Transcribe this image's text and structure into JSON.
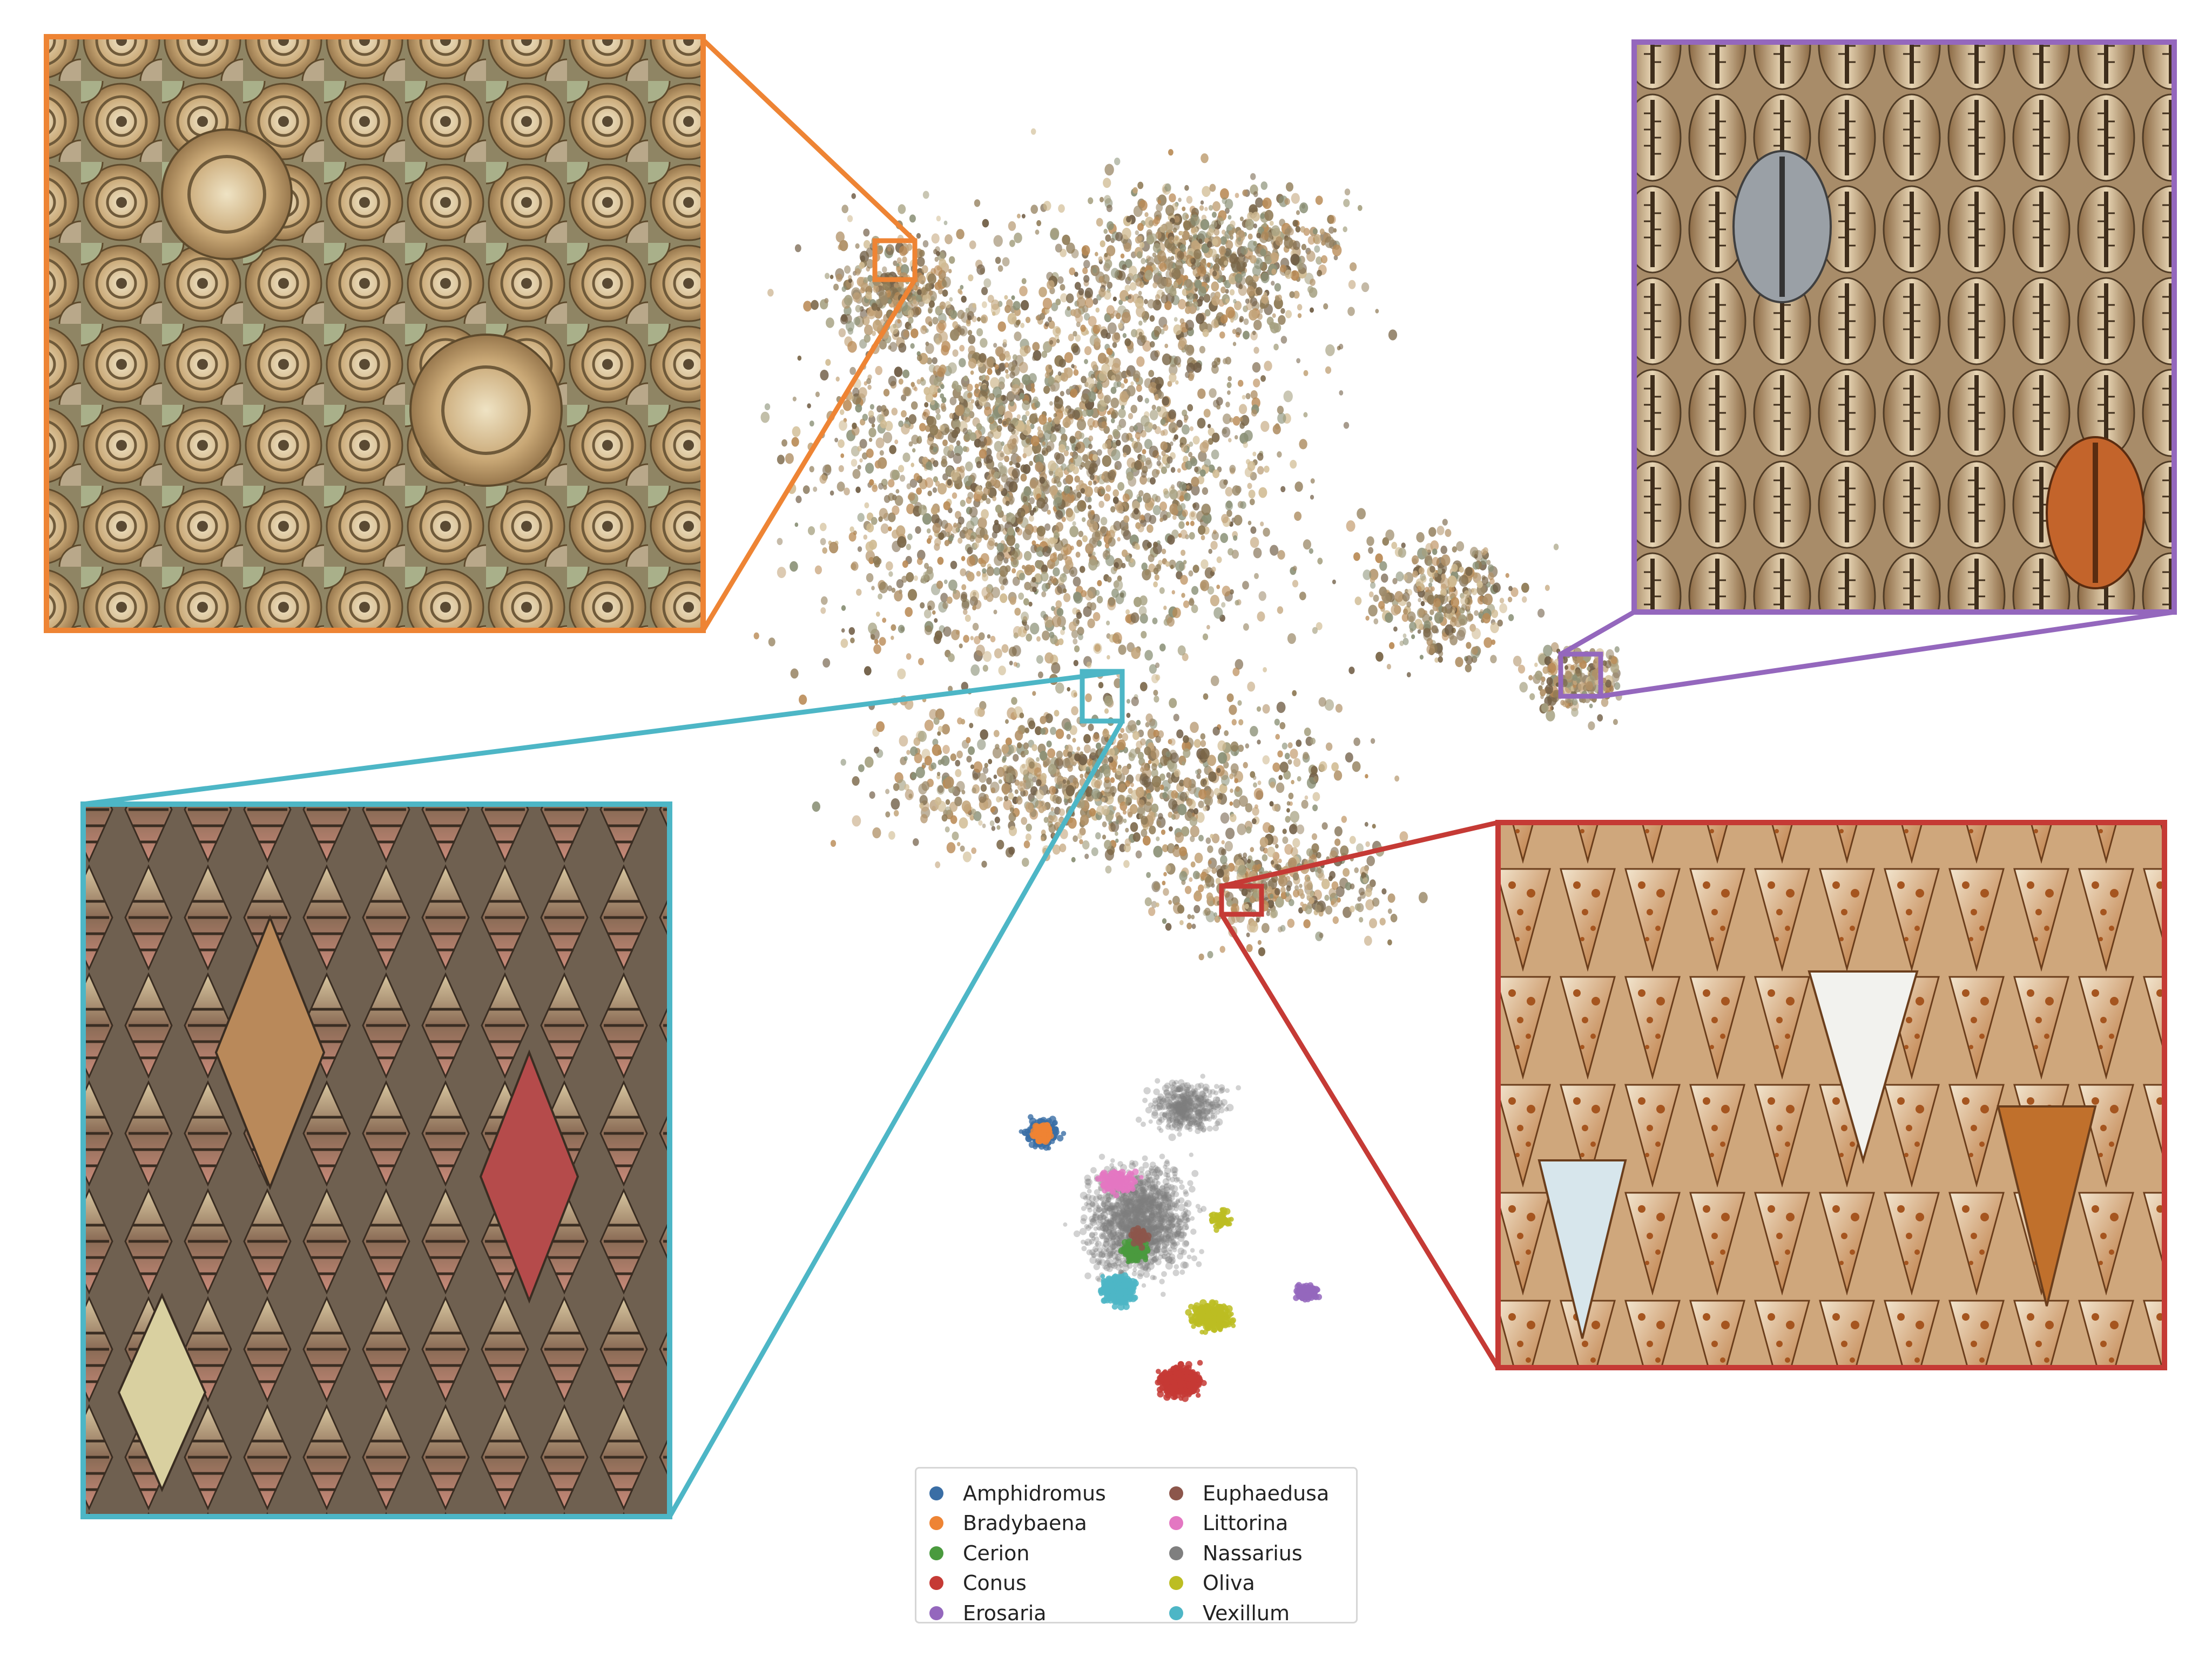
{
  "colors": {
    "orange": "#ee8434",
    "purple": "#9467bd",
    "cyan": "#4db6c6",
    "red": "#c53a35",
    "embedding_gray": "#7d7d7d"
  },
  "insets": [
    {
      "id": "orange-inset",
      "color": "#ee8434",
      "subject": "flat-spiral-shells-icon"
    },
    {
      "id": "purple-inset",
      "color": "#9467bd",
      "subject": "cowrie-shells-icon"
    },
    {
      "id": "cyan-inset",
      "color": "#4db6c6",
      "subject": "spindle-shells-icon"
    },
    {
      "id": "red-inset",
      "color": "#c53a35",
      "subject": "cone-shells-icon"
    }
  ],
  "legend": {
    "items": [
      {
        "label": "Amphidromus",
        "color": "#3a6ea5"
      },
      {
        "label": "Bradybaena",
        "color": "#ee8434"
      },
      {
        "label": "Cerion",
        "color": "#4a9a3e"
      },
      {
        "label": "Conus",
        "color": "#c53a35"
      },
      {
        "label": "Erosaria",
        "color": "#9467bd"
      },
      {
        "label": "Euphaedusa",
        "color": "#8c564b"
      },
      {
        "label": "Littorina",
        "color": "#e377c2"
      },
      {
        "label": "Nassarius",
        "color": "#7f7f7f"
      },
      {
        "label": "Oliva",
        "color": "#bcbd22"
      },
      {
        "label": "Vexillum",
        "color": "#4db6c6"
      }
    ]
  }
}
